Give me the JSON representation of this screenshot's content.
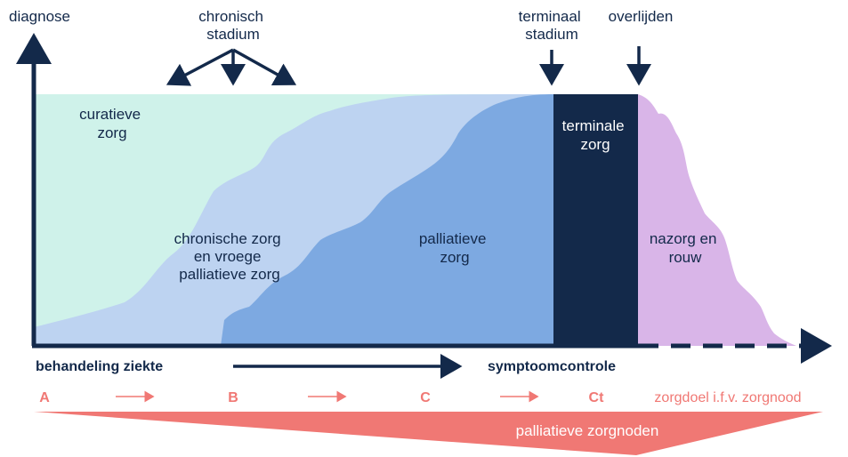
{
  "axes": {
    "y_label": "diagnose"
  },
  "top_labels": {
    "chronic_stage": [
      "chronisch",
      "stadium"
    ],
    "terminal_stage": [
      "terminaal",
      "stadium"
    ],
    "death": "overlijden"
  },
  "regions": {
    "curative": [
      "curatieve",
      "zorg"
    ],
    "chronic": [
      "chronische zorg",
      "en vroege",
      "palliatieve zorg"
    ],
    "palliative": [
      "palliatieve",
      "zorg"
    ],
    "terminal": [
      "terminale",
      "zorg"
    ],
    "aftercare": [
      "nazorg en",
      "rouw"
    ]
  },
  "bottom": {
    "treatment": "behandeling ziekte",
    "symptom_control": "symptoomcontrole",
    "stages": [
      "A",
      "B",
      "C",
      "Ct"
    ],
    "care_goal": "zorgdoel i.f.v. zorgnood",
    "needs_triangle": "palliatieve zorgnoden"
  },
  "colors": {
    "navy": "#13294a",
    "curative_mint": "#cff2ea",
    "chronic_lightblue": "#bdd3f1",
    "palliative_blue": "#7da9e1",
    "terminal_navy": "#13294a",
    "aftercare_lilac": "#d9b5e8",
    "coral": "#f07874"
  }
}
